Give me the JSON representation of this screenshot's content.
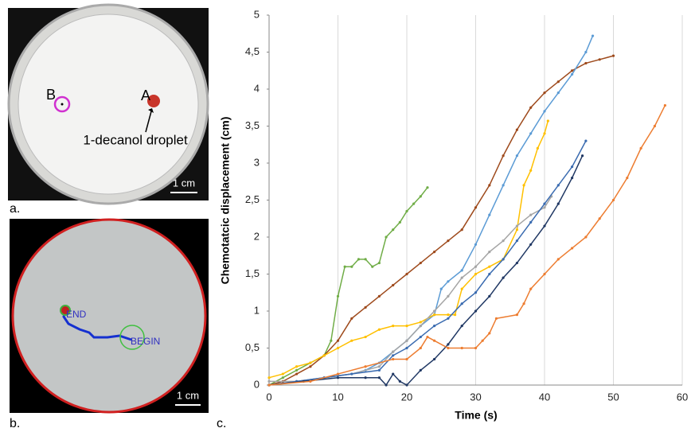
{
  "panels": {
    "a": {
      "label": "a.",
      "marker_b": "B",
      "marker_a": "A",
      "annotation": "1-decanol droplet",
      "scale": "1 cm"
    },
    "b": {
      "label": "b.",
      "end": "END",
      "begin": "BEGIN",
      "scale": "1 cm"
    },
    "c": {
      "label": "c."
    }
  },
  "chart_data": {
    "type": "line",
    "x_label": "Time (s)",
    "y_label": "Chemotatcic displacement (cm)",
    "xlim": [
      0,
      60
    ],
    "xticks": [
      0,
      10,
      20,
      30,
      40,
      50,
      60
    ],
    "ylim": [
      0,
      5
    ],
    "yticks": [
      0,
      {
        "value": 0.5,
        "label": "0,5"
      },
      1,
      {
        "value": 1.5,
        "label": "1,5"
      },
      2,
      {
        "value": 2.5,
        "label": "2,5"
      },
      3,
      {
        "value": 3.5,
        "label": "3,5"
      },
      4,
      {
        "value": 4.5,
        "label": "4,5"
      },
      5
    ],
    "grid": "x",
    "series": [
      {
        "color": "#70ad47",
        "x": [
          0,
          2,
          4,
          6,
          8,
          9,
          10,
          11,
          12,
          13,
          14,
          15,
          16,
          17,
          18,
          19,
          20,
          21,
          22,
          23
        ],
        "values": [
          0,
          0.1,
          0.2,
          0.3,
          0.4,
          0.6,
          1.2,
          1.6,
          1.6,
          1.7,
          1.7,
          1.6,
          1.65,
          2.0,
          2.1,
          2.2,
          2.35,
          2.45,
          2.55,
          2.67
        ]
      },
      {
        "color": "#9e4a1c",
        "x": [
          0,
          2,
          4,
          6,
          8,
          10,
          12,
          14,
          16,
          18,
          20,
          22,
          24,
          26,
          28,
          30,
          32,
          34,
          36,
          38,
          40,
          42,
          44,
          46,
          48,
          50
        ],
        "values": [
          0,
          0.05,
          0.15,
          0.25,
          0.4,
          0.6,
          0.9,
          1.05,
          1.2,
          1.35,
          1.5,
          1.65,
          1.8,
          1.95,
          2.1,
          2.4,
          2.7,
          3.1,
          3.45,
          3.75,
          3.95,
          4.1,
          4.25,
          4.35,
          4.4,
          4.45
        ]
      },
      {
        "color": "#5b9bd5",
        "x": [
          0,
          4,
          8,
          12,
          14,
          16,
          18,
          20,
          22,
          24,
          25,
          26,
          28,
          30,
          32,
          34,
          36,
          38,
          40,
          42,
          44,
          46,
          47
        ],
        "values": [
          0,
          0.05,
          0.1,
          0.15,
          0.2,
          0.3,
          0.45,
          0.6,
          0.8,
          0.95,
          1.3,
          1.4,
          1.55,
          1.9,
          2.3,
          2.7,
          3.1,
          3.4,
          3.7,
          3.95,
          4.2,
          4.5,
          4.72
        ]
      },
      {
        "color": "#ffc000",
        "x": [
          0,
          2,
          4,
          6,
          8,
          10,
          12,
          14,
          16,
          18,
          20,
          22,
          24,
          26,
          27,
          28,
          30,
          32,
          34,
          36,
          37,
          38,
          39,
          40,
          40.5
        ],
        "values": [
          0.1,
          0.15,
          0.25,
          0.3,
          0.4,
          0.5,
          0.6,
          0.65,
          0.75,
          0.8,
          0.8,
          0.85,
          0.95,
          0.95,
          0.95,
          1.3,
          1.5,
          1.6,
          1.7,
          2.1,
          2.7,
          2.9,
          3.2,
          3.4,
          3.57
        ]
      },
      {
        "color": "#a5a5a5",
        "x": [
          0,
          4,
          8,
          12,
          16,
          18,
          20,
          22,
          24,
          26,
          28,
          30,
          32,
          34,
          36,
          38,
          40,
          41
        ],
        "values": [
          0.05,
          0.05,
          0.1,
          0.15,
          0.25,
          0.45,
          0.6,
          0.8,
          1.0,
          1.2,
          1.45,
          1.6,
          1.8,
          1.95,
          2.15,
          2.3,
          2.4,
          2.55
        ]
      },
      {
        "color": "#3a6bb0",
        "x": [
          0,
          4,
          8,
          12,
          16,
          18,
          20,
          22,
          24,
          26,
          28,
          30,
          32,
          34,
          36,
          38,
          40,
          42,
          44,
          46
        ],
        "values": [
          0,
          0.05,
          0.1,
          0.15,
          0.2,
          0.4,
          0.5,
          0.65,
          0.8,
          0.9,
          1.1,
          1.25,
          1.5,
          1.7,
          1.95,
          2.2,
          2.45,
          2.7,
          2.95,
          3.3
        ]
      },
      {
        "color": "#203864",
        "x": [
          0,
          5,
          10,
          14,
          16,
          17,
          18,
          19,
          20,
          22,
          24,
          26,
          28,
          30,
          32,
          34,
          36,
          38,
          40,
          42,
          44,
          45.5
        ],
        "values": [
          0,
          0.05,
          0.1,
          0.1,
          0.1,
          0,
          0.15,
          0.05,
          0,
          0.2,
          0.35,
          0.55,
          0.8,
          1.0,
          1.2,
          1.45,
          1.65,
          1.9,
          2.15,
          2.45,
          2.8,
          3.1
        ]
      },
      {
        "color": "#ed7d31",
        "x": [
          0,
          6,
          10,
          14,
          18,
          20,
          22,
          23,
          24,
          26,
          28,
          30,
          31,
          32,
          33,
          36,
          37,
          38,
          40,
          42,
          44,
          46,
          48,
          50,
          52,
          54,
          56,
          57.5
        ],
        "values": [
          0,
          0.05,
          0.15,
          0.25,
          0.35,
          0.35,
          0.5,
          0.65,
          0.6,
          0.5,
          0.5,
          0.5,
          0.6,
          0.7,
          0.9,
          0.95,
          1.1,
          1.3,
          1.5,
          1.7,
          1.85,
          2.0,
          2.25,
          2.5,
          2.8,
          3.2,
          3.5,
          3.78
        ]
      }
    ]
  }
}
